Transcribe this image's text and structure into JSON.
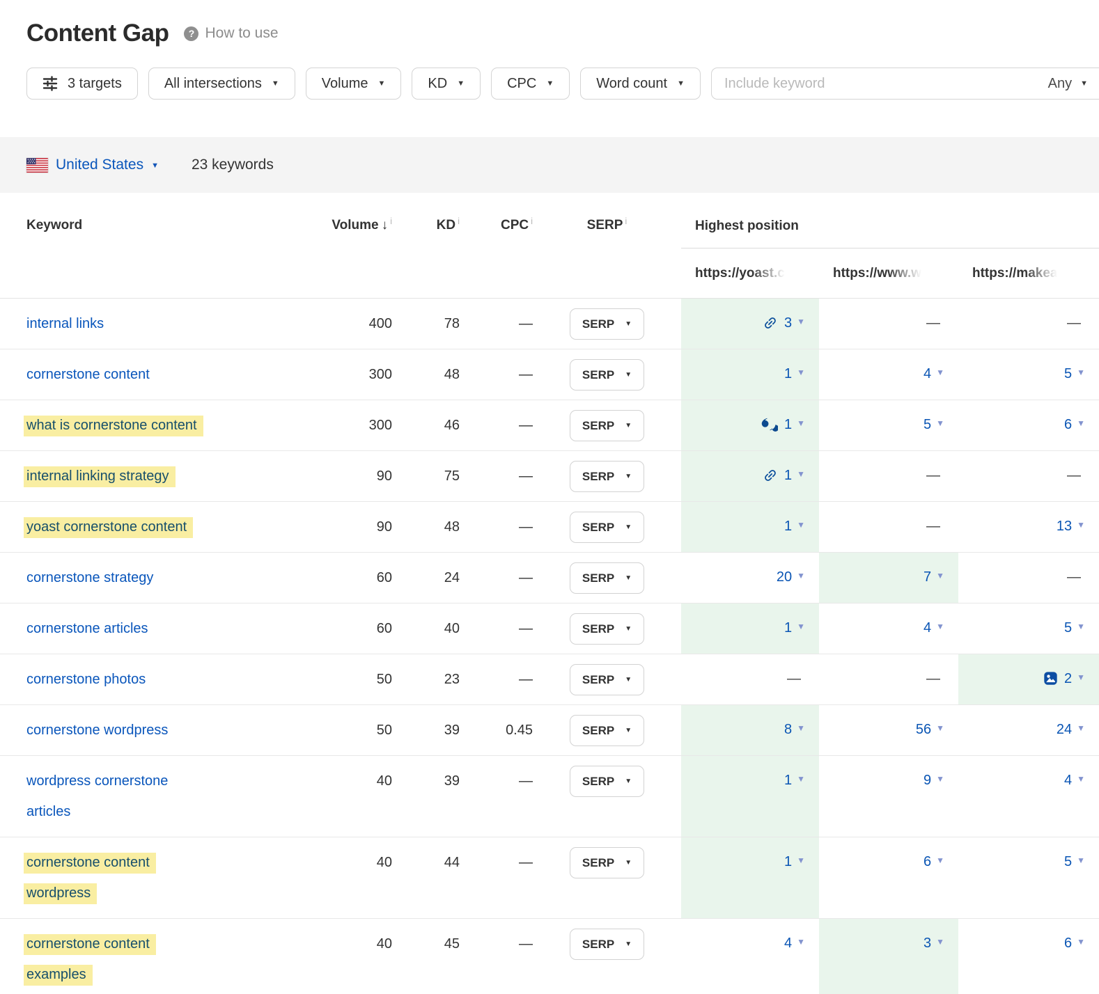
{
  "page": {
    "title": "Content Gap",
    "help_label": "How to use"
  },
  "filters": {
    "targets_label": "3 targets",
    "intersections_label": "All intersections",
    "volume_label": "Volume",
    "kd_label": "KD",
    "cpc_label": "CPC",
    "word_count_label": "Word count",
    "include_placeholder": "Include keyword",
    "match_mode": "Any"
  },
  "toolbar": {
    "country": "United States",
    "keywords_count": "23 keywords"
  },
  "table": {
    "info_glyph": "i",
    "headers": {
      "keyword": "Keyword",
      "volume": "Volume",
      "kd": "KD",
      "cpc": "CPC",
      "serp": "SERP",
      "highest_position": "Highest position"
    },
    "target_urls": [
      "https://yoast.c",
      "https://www.w",
      "https://makea"
    ],
    "serp_button_label": "SERP",
    "rows": [
      {
        "keyword": "internal links",
        "highlighted": false,
        "volume": "400",
        "kd": "78",
        "cpc": "—",
        "positions": [
          {
            "value": "3",
            "icon": "link-icon",
            "best": true
          },
          {
            "value": "—"
          },
          {
            "value": "—"
          }
        ]
      },
      {
        "keyword": "cornerstone content",
        "highlighted": false,
        "volume": "300",
        "kd": "48",
        "cpc": "—",
        "positions": [
          {
            "value": "1",
            "best": true
          },
          {
            "value": "4"
          },
          {
            "value": "5"
          }
        ]
      },
      {
        "keyword": "what is cornerstone content",
        "highlighted": true,
        "volume": "300",
        "kd": "46",
        "cpc": "—",
        "positions": [
          {
            "value": "1",
            "icon": "quote-icon",
            "best": true
          },
          {
            "value": "5"
          },
          {
            "value": "6"
          }
        ]
      },
      {
        "keyword": "internal linking strategy",
        "highlighted": true,
        "volume": "90",
        "kd": "75",
        "cpc": "—",
        "positions": [
          {
            "value": "1",
            "icon": "link-icon",
            "best": true
          },
          {
            "value": "—"
          },
          {
            "value": "—"
          }
        ]
      },
      {
        "keyword": "yoast cornerstone content",
        "highlighted": true,
        "volume": "90",
        "kd": "48",
        "cpc": "—",
        "positions": [
          {
            "value": "1",
            "best": true
          },
          {
            "value": "—"
          },
          {
            "value": "13"
          }
        ]
      },
      {
        "keyword": "cornerstone strategy",
        "highlighted": false,
        "volume": "60",
        "kd": "24",
        "cpc": "—",
        "positions": [
          {
            "value": "20"
          },
          {
            "value": "7",
            "best": true
          },
          {
            "value": "—"
          }
        ]
      },
      {
        "keyword": "cornerstone articles",
        "highlighted": false,
        "volume": "60",
        "kd": "40",
        "cpc": "—",
        "positions": [
          {
            "value": "1",
            "best": true
          },
          {
            "value": "4"
          },
          {
            "value": "5"
          }
        ]
      },
      {
        "keyword": "cornerstone photos",
        "highlighted": false,
        "volume": "50",
        "kd": "23",
        "cpc": "—",
        "positions": [
          {
            "value": "—"
          },
          {
            "value": "—"
          },
          {
            "value": "2",
            "icon": "image-icon",
            "best": true
          }
        ]
      },
      {
        "keyword": "cornerstone wordpress",
        "highlighted": false,
        "volume": "50",
        "kd": "39",
        "cpc": "0.45",
        "positions": [
          {
            "value": "8",
            "best": true
          },
          {
            "value": "56"
          },
          {
            "value": "24"
          }
        ]
      },
      {
        "keyword": "wordpress cornerstone articles",
        "highlighted": false,
        "volume": "40",
        "kd": "39",
        "cpc": "—",
        "positions": [
          {
            "value": "1",
            "best": true
          },
          {
            "value": "9"
          },
          {
            "value": "4"
          }
        ]
      },
      {
        "keyword": "cornerstone content wordpress",
        "highlighted": true,
        "volume": "40",
        "kd": "44",
        "cpc": "—",
        "positions": [
          {
            "value": "1",
            "best": true
          },
          {
            "value": "6"
          },
          {
            "value": "5"
          }
        ]
      },
      {
        "keyword": "cornerstone content examples",
        "highlighted": true,
        "volume": "40",
        "kd": "45",
        "cpc": "—",
        "positions": [
          {
            "value": "4"
          },
          {
            "value": "3",
            "best": true
          },
          {
            "value": "6"
          }
        ]
      }
    ]
  },
  "colors": {
    "link_blue": "#0a56bb",
    "position_blue": "#0a55b4",
    "caret_blue": "#8293cf",
    "best_green": "#e9f5ec",
    "highlight_yellow": "#f9eea2",
    "highlight_text": "#174f6b",
    "icon_navy": "#0d4a8f"
  }
}
